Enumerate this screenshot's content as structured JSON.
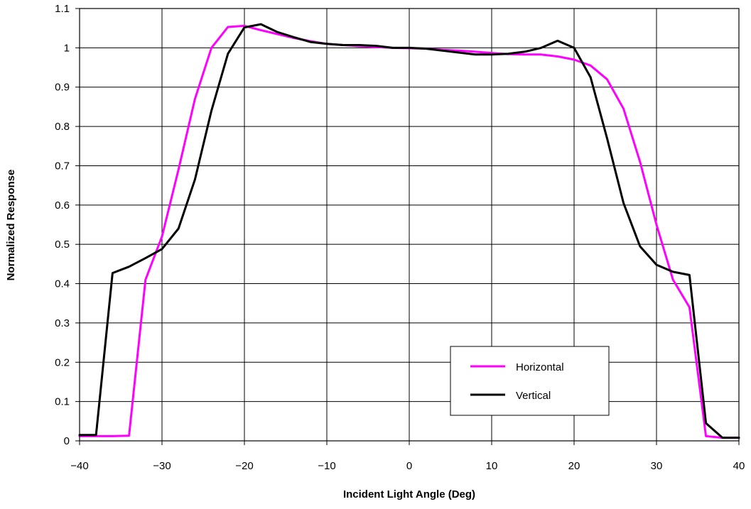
{
  "chart_data": {
    "type": "line",
    "title": "",
    "xlabel": "Incident Light Angle (Deg)",
    "ylabel": "Normalized Response",
    "xlim": [
      -40,
      40
    ],
    "ylim": [
      0,
      1.1
    ],
    "xticks": [
      -40,
      -30,
      -20,
      -10,
      0,
      10,
      20,
      30,
      40
    ],
    "xtick_labels": [
      "−40",
      "−30",
      "−20",
      "−10",
      "0",
      "10",
      "20",
      "30",
      "40"
    ],
    "yticks": [
      0,
      0.1,
      0.2,
      0.3,
      0.4,
      0.5,
      0.6,
      0.7,
      0.8,
      0.9,
      1,
      1.1
    ],
    "ytick_labels": [
      "0",
      "0.1",
      "0.2",
      "0.3",
      "0.4",
      "0.5",
      "0.6",
      "0.7",
      "0.8",
      "0.9",
      "1",
      "1.1"
    ],
    "grid": true,
    "legend_position": "lower-right",
    "x": [
      -40,
      -38,
      -36,
      -34,
      -32,
      -30,
      -28,
      -26,
      -24,
      -22,
      -20,
      -18,
      -16,
      -14,
      -12,
      -10,
      -8,
      -6,
      -4,
      -2,
      0,
      2,
      4,
      6,
      8,
      10,
      12,
      14,
      16,
      18,
      20,
      22,
      24,
      26,
      28,
      30,
      32,
      34,
      36,
      38,
      40
    ],
    "series": [
      {
        "name": "Horizontal",
        "color": "#ff00ff",
        "values": [
          0.012,
          0.012,
          0.012,
          0.013,
          0.41,
          0.52,
          0.69,
          0.87,
          1.0,
          1.053,
          1.056,
          1.045,
          1.035,
          1.025,
          1.017,
          1.01,
          1.007,
          1.004,
          1.002,
          1.0,
          0.999,
          0.998,
          0.995,
          0.993,
          0.99,
          0.987,
          0.984,
          0.983,
          0.983,
          0.978,
          0.97,
          0.955,
          0.92,
          0.845,
          0.71,
          0.55,
          0.41,
          0.34,
          0.012,
          0.008,
          0.008
        ]
      },
      {
        "name": "Vertical",
        "color": "#000000",
        "values": [
          0.015,
          0.015,
          0.427,
          0.443,
          0.465,
          0.488,
          0.54,
          0.665,
          0.84,
          0.985,
          1.052,
          1.06,
          1.04,
          1.027,
          1.015,
          1.01,
          1.007,
          1.007,
          1.005,
          1.0,
          1.0,
          0.998,
          0.993,
          0.988,
          0.983,
          0.983,
          0.985,
          0.99,
          1.0,
          1.018,
          1.0,
          0.925,
          0.77,
          0.605,
          0.495,
          0.448,
          0.43,
          0.422,
          0.045,
          0.008,
          0.008
        ]
      }
    ]
  }
}
